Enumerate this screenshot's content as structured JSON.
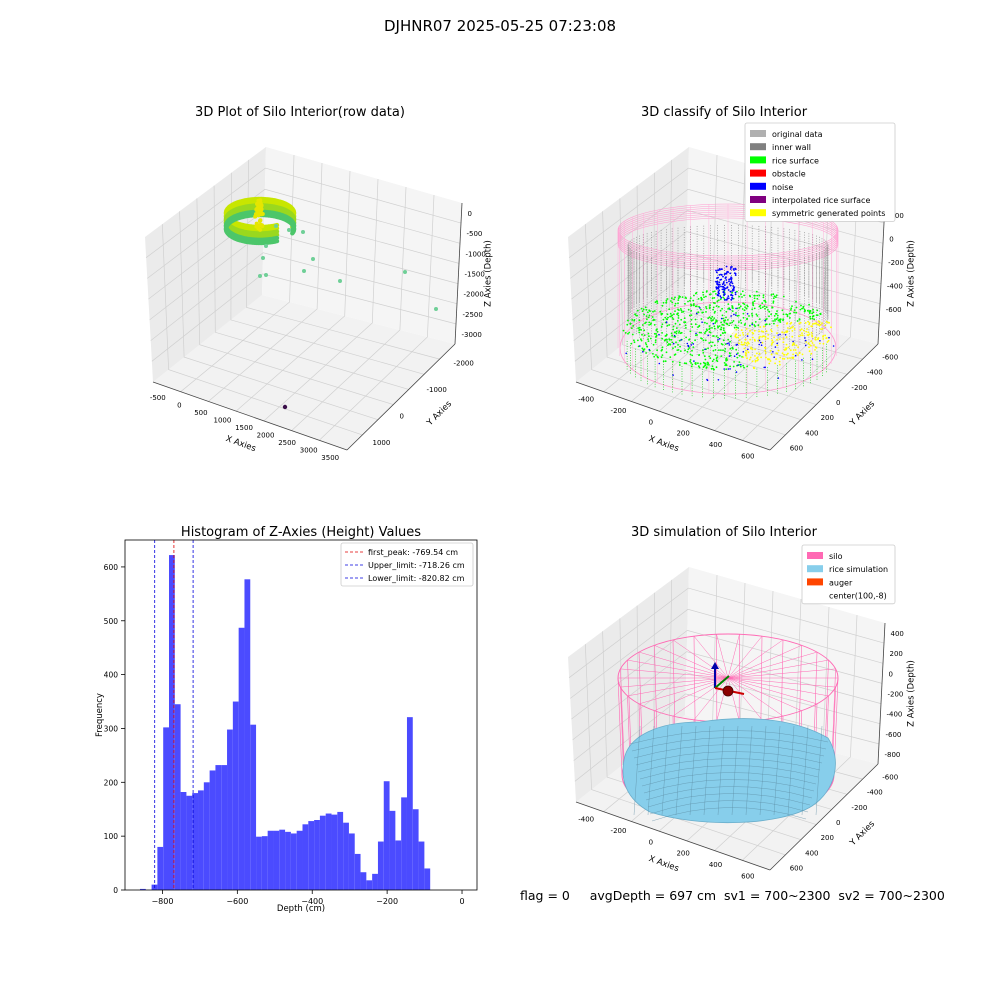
{
  "figure": {
    "suptitle": "DJHNR07 2025-05-25 07:23:08",
    "status_text": "flag = 0     avgDepth = 697 cm  sv1 = 700~2300  sv2 = 700~2300"
  },
  "colors": {
    "pane": "#f2f2f2",
    "grid": "#d0d0d0",
    "hist_bar": "#4b4bff",
    "first_peak": "#e00000",
    "limits": "#0000dd",
    "silo": "#ff69b4",
    "rice_simulation": "#87ceeb",
    "auger": "#ff4500",
    "original_data": "#b0b0b0",
    "inner_wall": "#808080",
    "rice_surface": "#00ff00",
    "obstacle": "#ff0000",
    "noise": "#0000ff",
    "interpolated_rice_surface": "#800080",
    "symmetric_generated_points": "#ffff00"
  },
  "chart_data": [
    {
      "type": "scatter",
      "title": "3D Plot of Silo Interior(row data)",
      "xlabel": "X Axies",
      "ylabel": "Y Axies",
      "zlabel": "Z Axies (Depth)",
      "x_ticks": [
        "-500",
        "0",
        "500",
        "1000",
        "1500",
        "2000",
        "2500",
        "3000",
        "3500"
      ],
      "y_ticks": [
        "-2000",
        "-1000",
        "0",
        "1000"
      ],
      "z_ticks": [
        "0",
        "-500",
        "-1000",
        "-1500",
        "-2000",
        "-2500",
        "-3000"
      ],
      "xlim": [
        -600,
        3500
      ],
      "ylim": [
        -2300,
        1700
      ],
      "zlim": [
        -3300,
        100
      ],
      "note_points": "dense ring of points near x~0 to 500, y~ -300 to 300, z~ -500; sparse outliers",
      "outliers": [
        {
          "x": 700,
          "y": 200,
          "z": -700
        },
        {
          "x": 900,
          "y": 0,
          "z": -1300
        },
        {
          "x": 1100,
          "y": -300,
          "z": -1600
        },
        {
          "x": 1800,
          "y": -600,
          "z": -1700
        },
        {
          "x": 2600,
          "y": -900,
          "z": -1400
        },
        {
          "x": 3100,
          "y": -1200,
          "z": -1800
        },
        {
          "x": 2000,
          "y": -2100,
          "z": -3200
        }
      ]
    },
    {
      "type": "scatter",
      "title": "3D classify of Silo Interior",
      "xlabel": "X Axies",
      "ylabel": "Y Axies",
      "zlabel": "Z Axies (Depth)",
      "x_ticks": [
        "-400",
        "-200",
        "0",
        "200",
        "400",
        "600"
      ],
      "y_ticks": [
        "-600",
        "-400",
        "-200",
        "0",
        "200",
        "400",
        "600"
      ],
      "z_ticks": [
        "200",
        "0",
        "-200",
        "-400",
        "-600",
        "-800"
      ],
      "xlim": [
        -500,
        700
      ],
      "ylim": [
        -650,
        650
      ],
      "zlim": [
        -900,
        300
      ],
      "legend": [
        {
          "label": "original data",
          "color": "#b0b0b0"
        },
        {
          "label": "inner wall",
          "color": "#808080"
        },
        {
          "label": "rice surface",
          "color": "#00ff00"
        },
        {
          "label": "obstacle",
          "color": "#ff0000"
        },
        {
          "label": "noise",
          "color": "#0000ff"
        },
        {
          "label": "interpolated rice surface",
          "color": "#800080"
        },
        {
          "label": "symmetric generated points",
          "color": "#ffff00"
        }
      ],
      "legend_position": "upper-right"
    },
    {
      "type": "bar",
      "title": "Histogram of Z-Axies (Height) Values",
      "xlabel": "Depth (cm)",
      "ylabel": "Frequency",
      "xlim": [
        -900,
        40
      ],
      "ylim": [
        0,
        650
      ],
      "x_ticks": [
        -800,
        -600,
        -400,
        -200,
        0
      ],
      "y_ticks": [
        0,
        100,
        200,
        300,
        400,
        500,
        600
      ],
      "bin_start": -860,
      "bin_width": 15.5,
      "values": [
        2,
        0,
        10,
        80,
        302,
        622,
        345,
        182,
        175,
        180,
        185,
        200,
        222,
        232,
        232,
        298,
        350,
        487,
        577,
        307,
        99,
        100,
        110,
        110,
        112,
        108,
        105,
        110,
        122,
        128,
        130,
        138,
        142,
        140,
        145,
        125,
        105,
        67,
        33,
        18,
        30,
        90,
        202,
        147,
        92,
        172,
        321,
        150,
        90,
        40
      ],
      "lines": [
        {
          "label": "first_peak: -769.54 cm",
          "x": -769.54,
          "color": "#e00000"
        },
        {
          "label": "Upper_limit: -718.26 cm",
          "x": -718.26,
          "color": "#0000dd"
        },
        {
          "label": "Lower_limit: -820.82 cm",
          "x": -820.82,
          "color": "#0000dd"
        }
      ],
      "legend_position": "upper-right"
    },
    {
      "type": "area",
      "title": "3D simulation of Silo Interior",
      "xlabel": "X Axies",
      "ylabel": "Y Axies",
      "zlabel": "Z Axies (Depth)",
      "x_ticks": [
        "-400",
        "-200",
        "0",
        "200",
        "400",
        "600"
      ],
      "y_ticks": [
        "-600",
        "-400",
        "-200",
        "0",
        "200",
        "400",
        "600"
      ],
      "z_ticks": [
        "400",
        "200",
        "0",
        "-200",
        "-400",
        "-600",
        "-800"
      ],
      "xlim": [
        -500,
        700
      ],
      "ylim": [
        -650,
        650
      ],
      "zlim": [
        -900,
        500
      ],
      "legend": [
        {
          "label": "silo",
          "color": "#ff69b4"
        },
        {
          "label": "rice simulation",
          "color": "#87ceeb"
        },
        {
          "label": "auger",
          "color": "#ff4500"
        },
        {
          "label": "center(100,-8)",
          "color": ""
        }
      ],
      "legend_position": "upper-right"
    }
  ]
}
